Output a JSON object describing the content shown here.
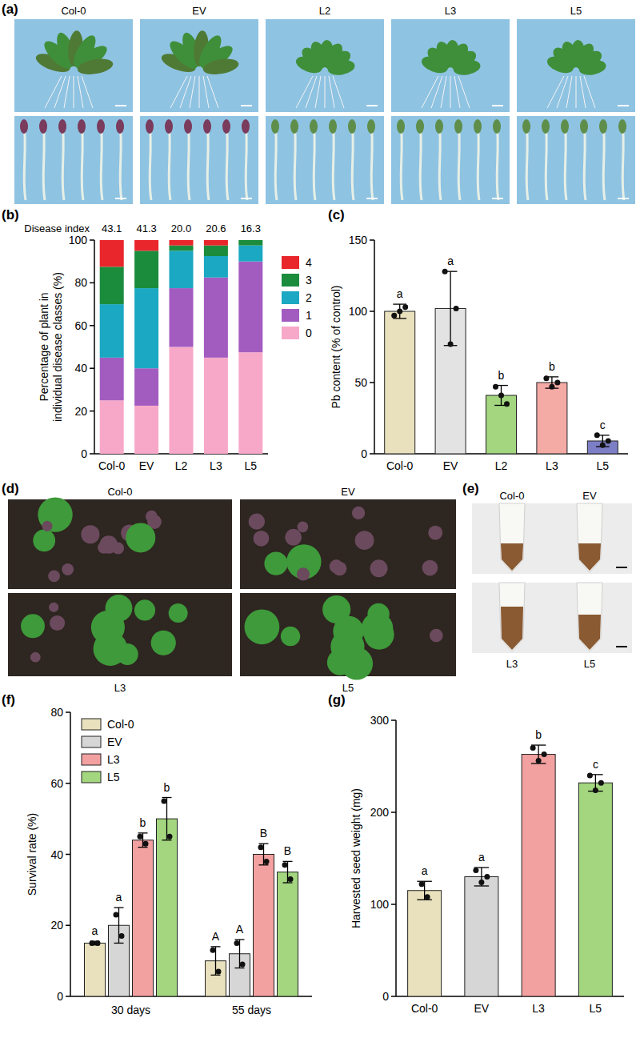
{
  "panels": {
    "a": "(a)",
    "b": "(b)",
    "c": "(c)",
    "d": "(d)",
    "e": "(e)",
    "f": "(f)",
    "g": "(g)"
  },
  "photos": {
    "a": [
      "Col-0",
      "EV",
      "L2",
      "L3",
      "L5"
    ],
    "d": [
      "Col-0",
      "EV",
      "L3",
      "L5"
    ],
    "e": [
      "Col-0",
      "EV",
      "L3",
      "L5"
    ]
  },
  "chart_data": [
    {
      "type": "bar",
      "stacked": true,
      "legend": "right",
      "categories": [
        "Col-0",
        "EV",
        "L2",
        "L3",
        "L5"
      ],
      "series": [
        {
          "name": "0",
          "color": "#f7a8c8",
          "values": [
            25,
            22.5,
            50,
            45,
            47.5
          ]
        },
        {
          "name": "1",
          "color": "#a25cc0",
          "values": [
            20,
            17.5,
            27.5,
            37.5,
            42.5
          ]
        },
        {
          "name": "2",
          "color": "#1ba8c2",
          "values": [
            25,
            37.5,
            17.5,
            10,
            7.5
          ]
        },
        {
          "name": "3",
          "color": "#1b8c3c",
          "values": [
            17.5,
            17.5,
            2.5,
            5,
            2.5
          ]
        },
        {
          "name": "4",
          "color": "#e8262b",
          "values": [
            12.5,
            5,
            2.5,
            2.5,
            0
          ]
        }
      ],
      "ylim": [
        0,
        100
      ],
      "yticks": [
        0,
        20,
        40,
        60,
        80,
        100
      ],
      "y_label": [
        "Percentage of plant in",
        "individual disease classes (%)"
      ],
      "disease_index": {
        "label": "Disease index",
        "values": [
          43.1,
          41.3,
          20,
          20.6,
          16.3
        ],
        "value_labels": [
          "43.1",
          "41.3",
          "20.0",
          "20.6",
          "16.3"
        ]
      }
    },
    {
      "type": "bar",
      "categories": [
        "Col-0",
        "EV",
        "L2",
        "L3",
        "L5"
      ],
      "values": [
        100,
        102,
        41,
        50,
        9
      ],
      "errors": [
        5,
        26,
        7,
        4,
        4
      ],
      "points": [
        [
          97,
          100,
          103
        ],
        [
          128,
          77,
          102
        ],
        [
          47,
          41,
          35
        ],
        [
          53,
          47,
          50
        ],
        [
          13,
          6,
          9
        ]
      ],
      "letters": [
        "a",
        "a",
        "b",
        "b",
        "c"
      ],
      "colors": [
        "#e9e1bd",
        "#e3e3e3",
        "#a3d67f",
        "#f4aaa5",
        "#7d7fc6"
      ],
      "ylim": [
        0,
        150
      ],
      "yticks": [
        0,
        50,
        100,
        150
      ],
      "y_label": "Pb content (% of control)"
    },
    {
      "type": "bar",
      "legend": "top-left",
      "categories": [
        "30 days",
        "55 days"
      ],
      "series": [
        {
          "name": "Col-0",
          "color": "#e9e1bd",
          "values": [
            15,
            10
          ],
          "errors": [
            0.5,
            4
          ],
          "points": [
            [
              15,
              15
            ],
            [
              13,
              7
            ]
          ],
          "letters": [
            "a",
            "A"
          ]
        },
        {
          "name": "EV",
          "color": "#d6d6d6",
          "values": [
            20,
            12
          ],
          "errors": [
            5,
            4
          ],
          "points": [
            [
              23,
              17
            ],
            [
              15,
              9
            ]
          ],
          "letters": [
            "a",
            "A"
          ]
        },
        {
          "name": "L3",
          "color": "#f2a1a0",
          "values": [
            44,
            40
          ],
          "errors": [
            2,
            3
          ],
          "points": [
            [
              45,
              43
            ],
            [
              42,
              38
            ]
          ],
          "letters": [
            "b",
            "B"
          ]
        },
        {
          "name": "L5",
          "color": "#a3d67f",
          "values": [
            50,
            35
          ],
          "errors": [
            6,
            3
          ],
          "points": [
            [
              55,
              45
            ],
            [
              37,
              33
            ]
          ],
          "letters": [
            "b",
            "B"
          ]
        }
      ],
      "ylim": [
        0,
        80
      ],
      "yticks": [
        0,
        20,
        40,
        60,
        80
      ],
      "y_label": "Survival rate (%)"
    },
    {
      "type": "bar",
      "categories": [
        "Col-0",
        "EV",
        "L3",
        "L5"
      ],
      "values": [
        115,
        130,
        263,
        232
      ],
      "errors": [
        10,
        10,
        10,
        9
      ],
      "points": [
        [
          122,
          108
        ],
        [
          137,
          124,
          130
        ],
        [
          270,
          256,
          263
        ],
        [
          240,
          224,
          232
        ]
      ],
      "letters": [
        "a",
        "a",
        "b",
        "c"
      ],
      "colors": [
        "#e9e1bd",
        "#d6d6d6",
        "#f2a1a0",
        "#a3d67f"
      ],
      "ylim": [
        0,
        300
      ],
      "yticks": [
        0,
        100,
        200,
        300
      ],
      "y_label": "Harvested seed weight (mg)"
    }
  ]
}
